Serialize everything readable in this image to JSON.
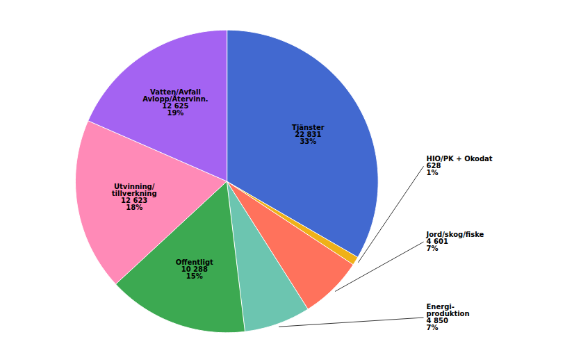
{
  "chart_data": {
    "type": "pie",
    "categories": [
      "Tjänster",
      "HIO/PK + Okodat",
      "Jord/skog/fiske",
      "Energi-\nproduktion",
      "Offentligt",
      "Utvinning/\ntillverkning",
      "Vatten/Avfall\nAvlopp/Återvinn."
    ],
    "values": [
      22831,
      628,
      4601,
      4850,
      10288,
      12623,
      12625
    ],
    "value_labels": [
      "22 831",
      "628",
      "4 601",
      "4 850",
      "10 288",
      "12 623",
      "12 625"
    ],
    "shares": [
      33,
      1,
      7,
      7,
      15,
      18,
      19
    ],
    "share_labels": [
      "33%",
      "1%",
      "7%",
      "7%",
      "15%",
      "18%",
      "19%"
    ],
    "data_labels": true
  }
}
